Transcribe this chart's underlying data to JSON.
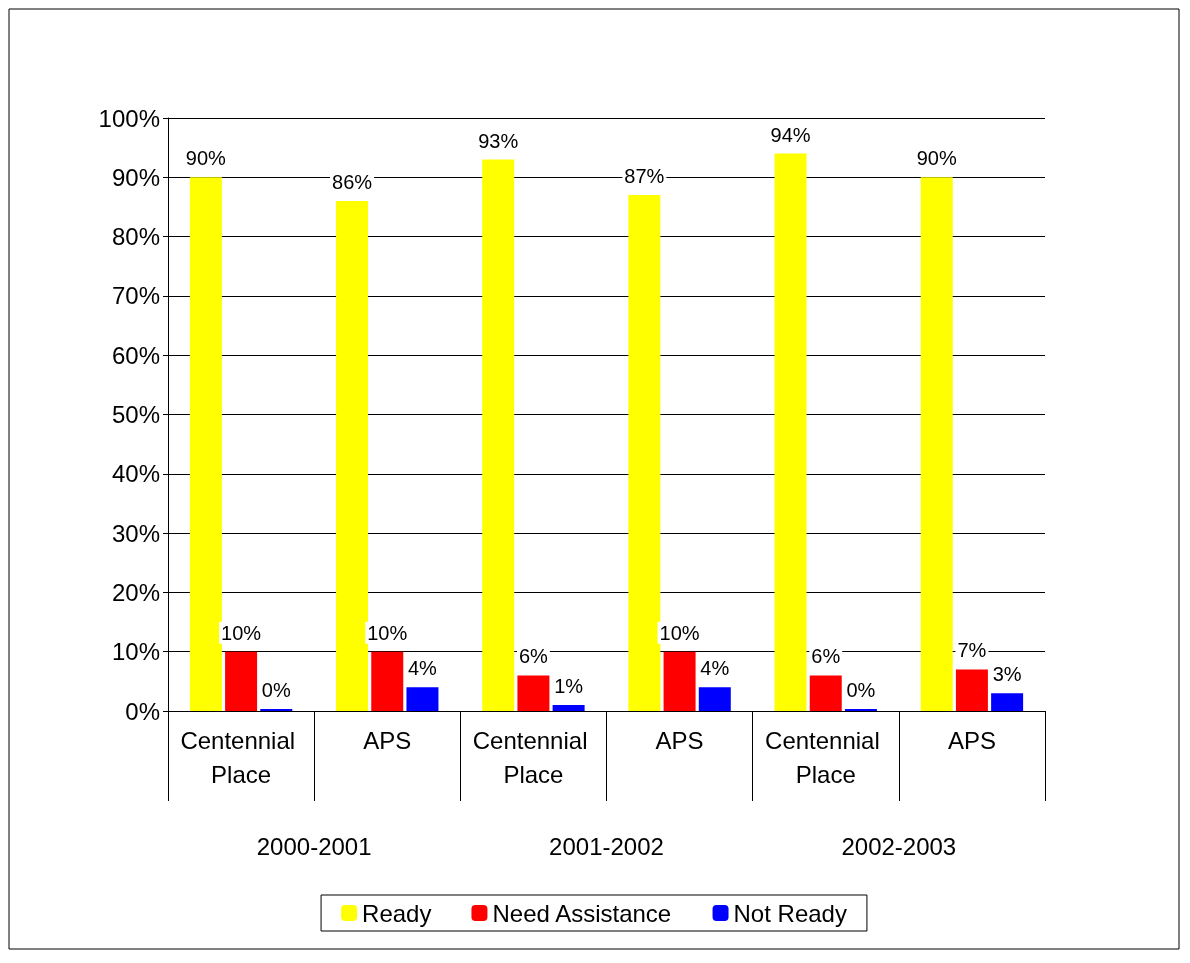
{
  "chart_data": {
    "type": "bar",
    "categories": [
      "Centennial Place",
      "APS",
      "Centennial Place",
      "APS",
      "Centennial Place",
      "APS"
    ],
    "series": [
      {
        "name": "Ready",
        "color": "#ffff00",
        "values": [
          90,
          86,
          93,
          87,
          94,
          90
        ],
        "value_labels": [
          "90%",
          "86%",
          "93%",
          "87%",
          "94%",
          "90%"
        ]
      },
      {
        "name": "Need Assistance",
        "color": "#ff0000",
        "values": [
          10,
          10,
          6,
          10,
          6,
          7
        ],
        "value_labels": [
          "10%",
          "10%",
          "6%",
          "10%",
          "6%",
          "7%"
        ]
      },
      {
        "name": "Not Ready",
        "color": "#0000ff",
        "values": [
          0,
          4,
          1,
          4,
          0,
          3
        ],
        "value_labels": [
          "0%",
          "4%",
          "1%",
          "4%",
          "0%",
          "3%"
        ]
      }
    ],
    "annotations": [
      "2000-2001",
      "2001-2002",
      "2002-2003"
    ],
    "ylim": [
      0,
      100
    ],
    "yticks": [
      {
        "value": 0,
        "label": "0%"
      },
      {
        "value": 10,
        "label": "10%"
      },
      {
        "value": 20,
        "label": "20%"
      },
      {
        "value": 30,
        "label": "30%"
      },
      {
        "value": 40,
        "label": "40%"
      },
      {
        "value": 50,
        "label": "50%"
      },
      {
        "value": 60,
        "label": "60%"
      },
      {
        "value": 70,
        "label": "70%"
      },
      {
        "value": 80,
        "label": "80%"
      },
      {
        "value": 90,
        "label": "90%"
      },
      {
        "value": 100,
        "label": "100%"
      }
    ],
    "grid": "y",
    "legend": "bottom"
  }
}
